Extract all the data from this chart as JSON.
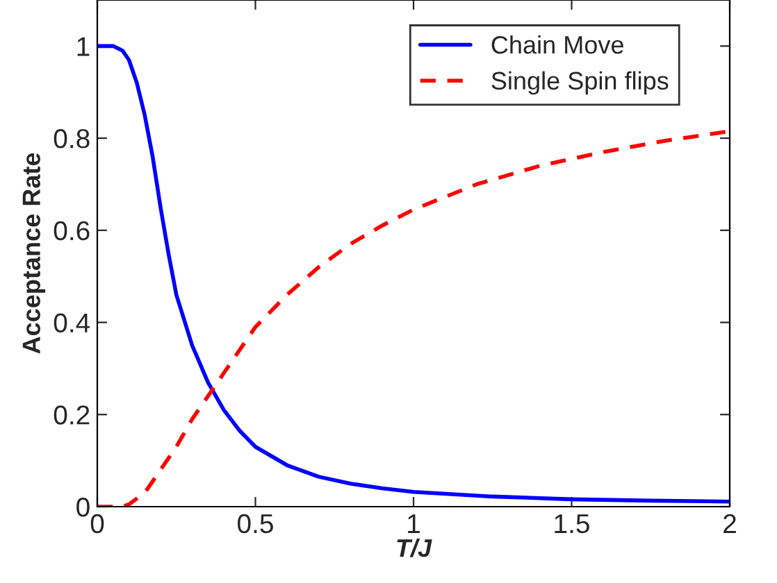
{
  "chart_data": {
    "type": "line",
    "xlabel": "T/J",
    "ylabel": "Acceptance Rate",
    "xlim": [
      0,
      2
    ],
    "ylim": [
      0,
      1.1
    ],
    "xticks": [
      0,
      0.5,
      1,
      1.5,
      2
    ],
    "yticks": [
      0,
      0.2,
      0.4,
      0.6,
      0.8,
      1
    ],
    "legend": "top right",
    "grid": false,
    "series": [
      {
        "name": "Chain Move",
        "color": "#0000ff",
        "line_style": "solid",
        "x": [
          0,
          0.05,
          0.08,
          0.1,
          0.125,
          0.15,
          0.175,
          0.2,
          0.225,
          0.25,
          0.3,
          0.35,
          0.4,
          0.45,
          0.5,
          0.6,
          0.7,
          0.8,
          0.9,
          1.0,
          1.25,
          1.5,
          1.75,
          2.0
        ],
        "values": [
          1,
          1,
          0.99,
          0.97,
          0.92,
          0.85,
          0.76,
          0.65,
          0.55,
          0.46,
          0.35,
          0.27,
          0.21,
          0.165,
          0.13,
          0.09,
          0.065,
          0.05,
          0.04,
          0.032,
          0.022,
          0.016,
          0.013,
          0.011
        ]
      },
      {
        "name": "Single Spin flips",
        "color": "#ff0000",
        "line_style": "dashed",
        "x": [
          0,
          0.08,
          0.1,
          0.15,
          0.2,
          0.25,
          0.3,
          0.35,
          0.4,
          0.5,
          0.6,
          0.7,
          0.8,
          0.9,
          1.0,
          1.2,
          1.4,
          1.6,
          1.8,
          2.0
        ],
        "values": [
          0,
          0,
          0.005,
          0.03,
          0.08,
          0.13,
          0.19,
          0.24,
          0.29,
          0.39,
          0.46,
          0.52,
          0.57,
          0.61,
          0.645,
          0.7,
          0.74,
          0.77,
          0.795,
          0.815
        ]
      }
    ]
  }
}
